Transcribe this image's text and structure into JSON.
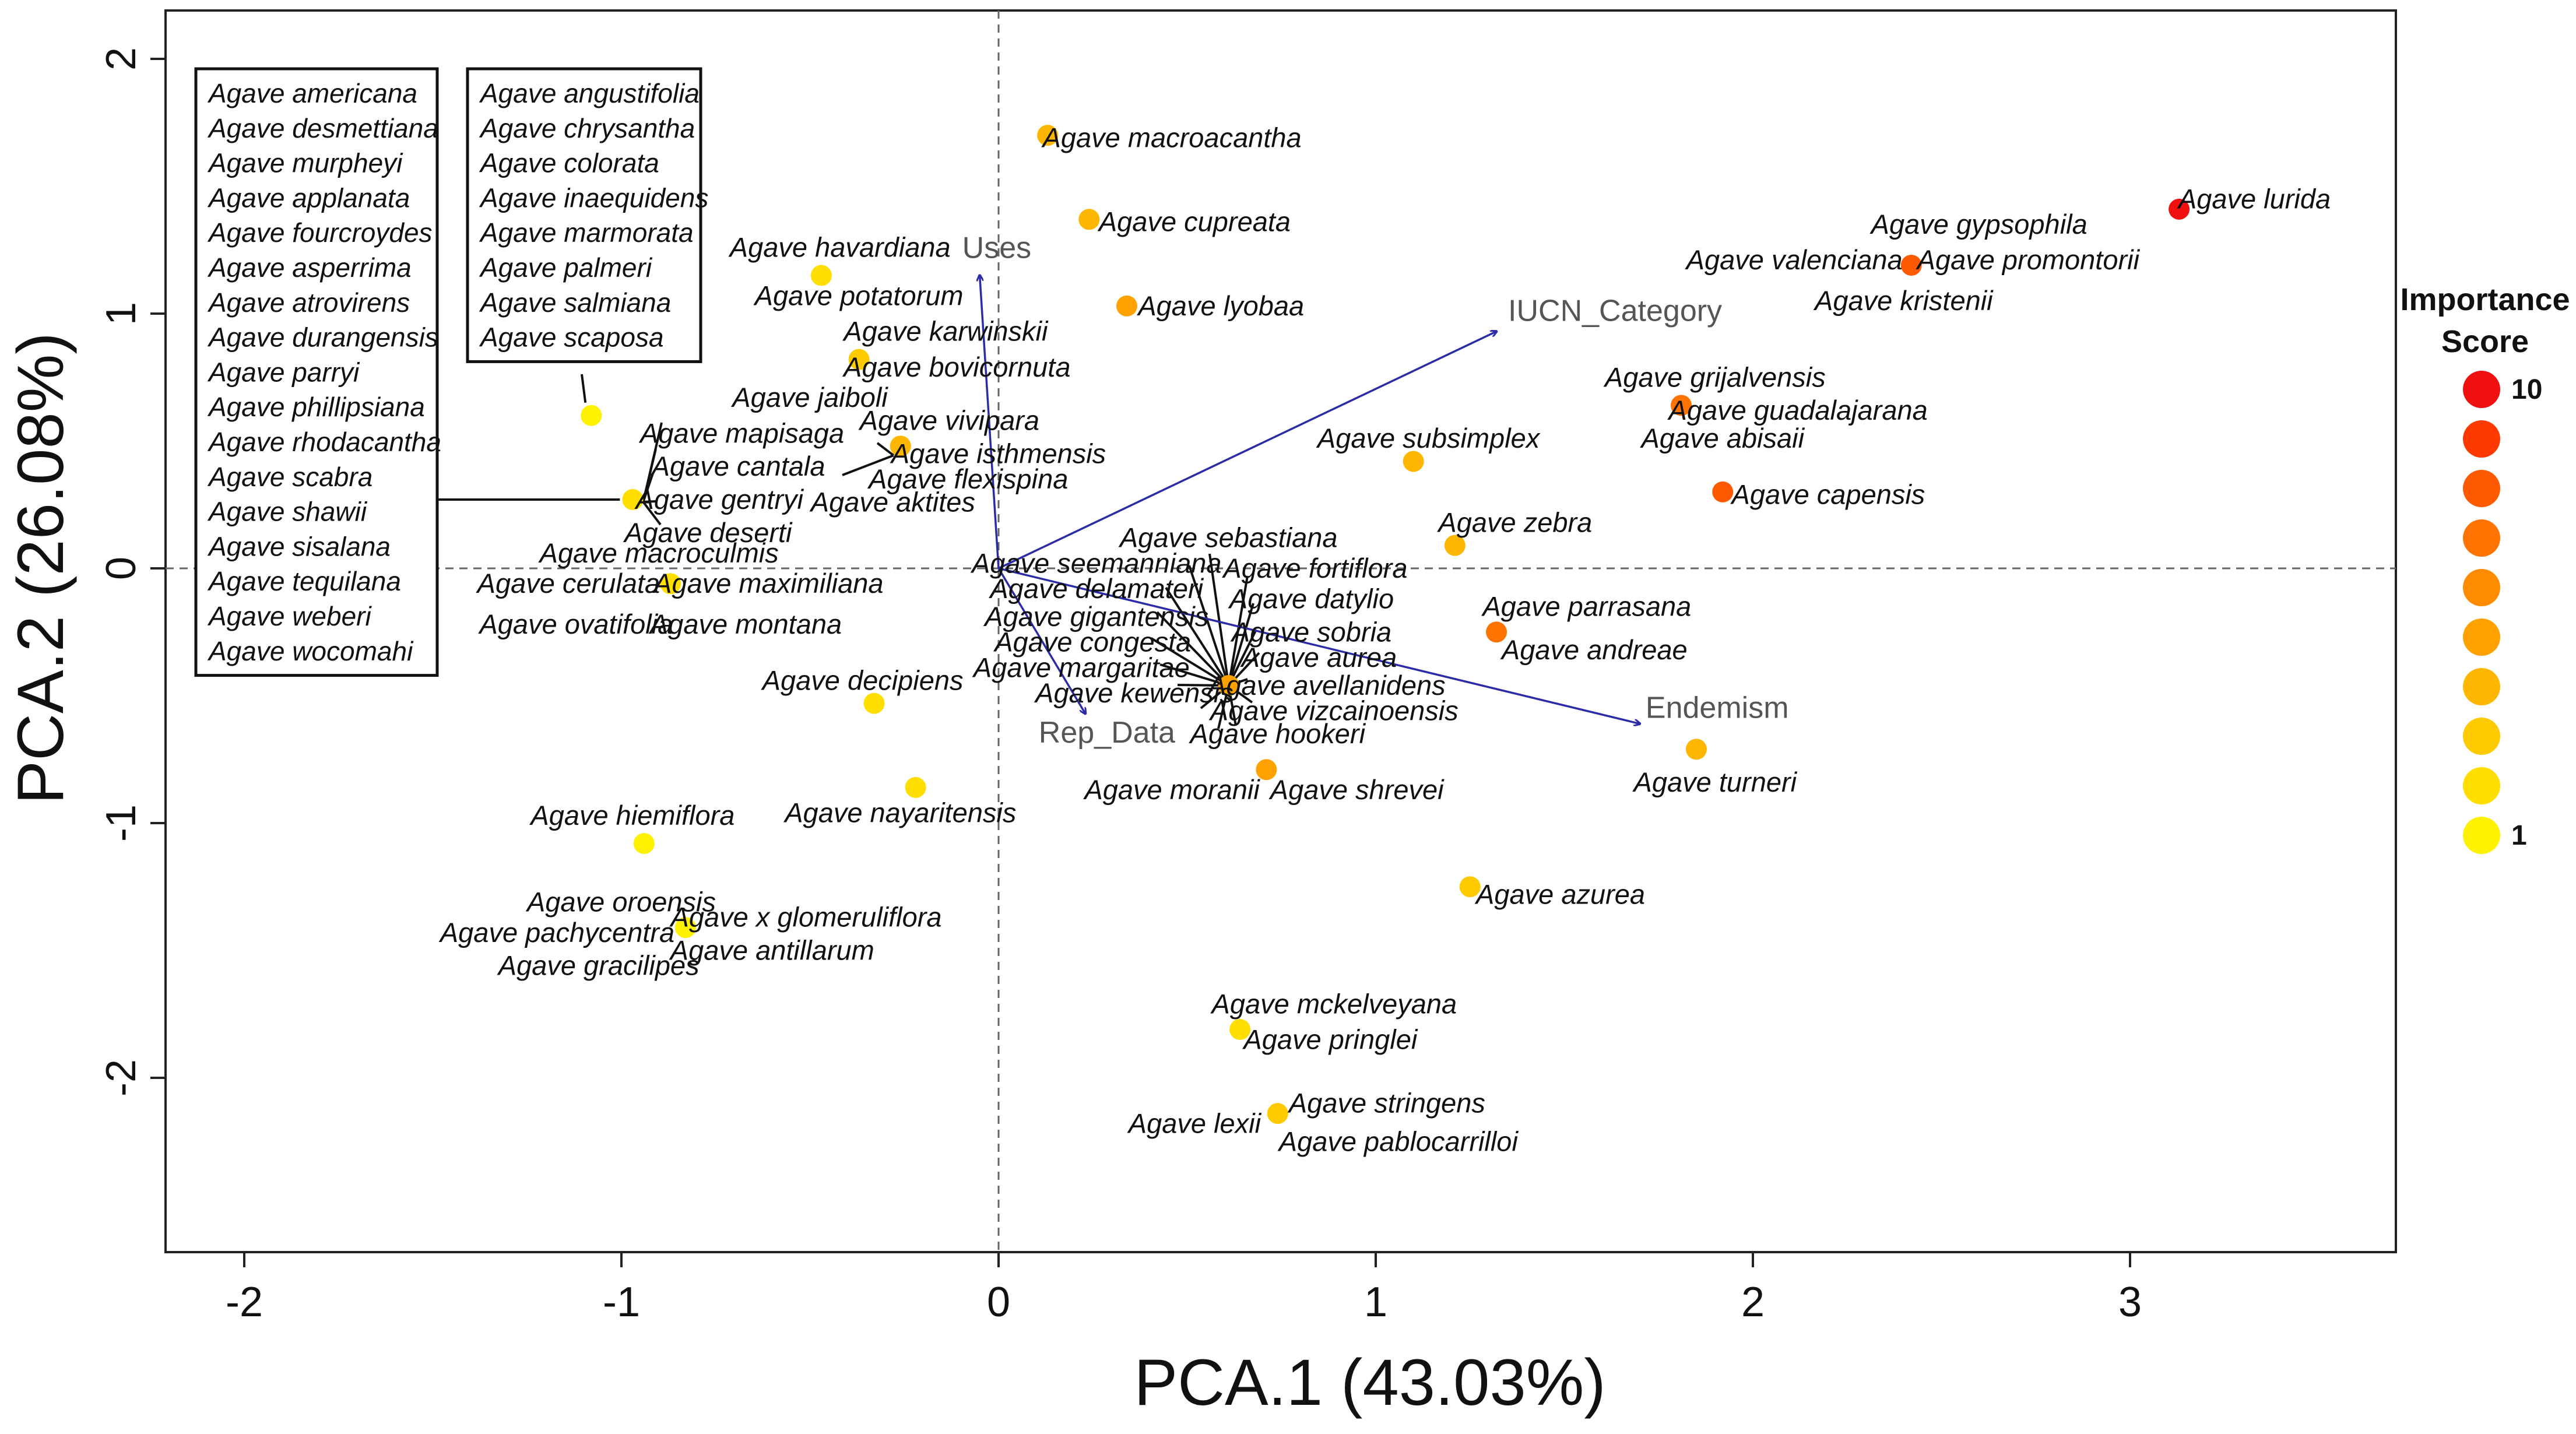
{
  "chart_data": {
    "type": "scatter",
    "title": "",
    "xlabel": "PCA.1 (43.03%)",
    "ylabel": "PCA.2 (26.08%)",
    "xlim": [
      -2.22,
      3.72
    ],
    "ylim": [
      -2.68,
      2.2
    ],
    "xticks": [
      "-2",
      "-1",
      "0",
      "1",
      "2",
      "3"
    ],
    "xtick_values": [
      -2,
      -1,
      0,
      1,
      2,
      3
    ],
    "yticks": [
      "-2",
      "-1",
      "0",
      "1",
      "2"
    ],
    "ytick_values": [
      -2,
      -1,
      0,
      1,
      2
    ],
    "reference_lines": {
      "x": 0,
      "y": 0
    },
    "color_scale": [
      "#fff200",
      "#ffde00",
      "#ffca00",
      "#ffb600",
      "#ffa200",
      "#ff8c00",
      "#ff7300",
      "#ff5a00",
      "#ff3a00",
      "#f01010"
    ],
    "legend": {
      "title_line1": "Importance",
      "title_line2": "Score",
      "max_label": "10",
      "min_label": "1",
      "placement": "right"
    },
    "vectors": [
      {
        "name": "Uses",
        "x": -0.05,
        "y": 1.15
      },
      {
        "name": "IUCN_Category",
        "x": 1.32,
        "y": 0.93
      },
      {
        "name": "Rep_Data",
        "x": 0.23,
        "y": -0.57
      },
      {
        "name": "Endemism",
        "x": 1.7,
        "y": -0.61
      }
    ],
    "points": [
      {
        "x": 3.13,
        "y": 1.41,
        "score": 10
      },
      {
        "x": 2.42,
        "y": 1.19,
        "score": 8
      },
      {
        "x": 1.81,
        "y": 0.64,
        "score": 7
      },
      {
        "x": 1.92,
        "y": 0.3,
        "score": 8
      },
      {
        "x": 1.32,
        "y": -0.25,
        "score": 7
      },
      {
        "x": 0.13,
        "y": 1.7,
        "score": 4
      },
      {
        "x": 0.24,
        "y": 1.37,
        "score": 4
      },
      {
        "x": 0.34,
        "y": 1.03,
        "score": 5
      },
      {
        "x": -0.47,
        "y": 1.15,
        "score": 2
      },
      {
        "x": -0.37,
        "y": 0.82,
        "score": 3
      },
      {
        "x": -0.26,
        "y": 0.48,
        "score": 4
      },
      {
        "x": -1.08,
        "y": 0.6,
        "score": 1
      },
      {
        "x": -0.97,
        "y": 0.27,
        "score": 2
      },
      {
        "x": -0.87,
        "y": -0.06,
        "score": 2
      },
      {
        "x": 1.1,
        "y": 0.42,
        "score": 4
      },
      {
        "x": 1.21,
        "y": 0.09,
        "score": 4
      },
      {
        "x": 0.61,
        "y": -0.46,
        "score": 5
      },
      {
        "x": 0.71,
        "y": -0.79,
        "score": 5
      },
      {
        "x": 1.85,
        "y": -0.71,
        "score": 4
      },
      {
        "x": -0.33,
        "y": -0.53,
        "score": 2
      },
      {
        "x": -0.22,
        "y": -0.86,
        "score": 2
      },
      {
        "x": -0.94,
        "y": -1.08,
        "score": 1
      },
      {
        "x": -0.83,
        "y": -1.41,
        "score": 1
      },
      {
        "x": 1.25,
        "y": -1.25,
        "score": 3
      },
      {
        "x": 0.64,
        "y": -1.81,
        "score": 2
      },
      {
        "x": 0.74,
        "y": -2.14,
        "score": 3
      }
    ],
    "point_labels": [
      {
        "text": "Agave lurida",
        "x": 3.33,
        "y": 1.45
      },
      {
        "text": "Agave gypsophila",
        "x": 2.6,
        "y": 1.35
      },
      {
        "text": "Agave valenciana",
        "x": 2.11,
        "y": 1.21
      },
      {
        "text": "Agave promontorii",
        "x": 2.73,
        "y": 1.21
      },
      {
        "text": "Agave kristenii",
        "x": 2.4,
        "y": 1.05
      },
      {
        "text": "Agave grijalvensis",
        "x": 1.9,
        "y": 0.75
      },
      {
        "text": "Agave guadalajarana",
        "x": 2.12,
        "y": 0.62
      },
      {
        "text": "Agave abisaii",
        "x": 1.92,
        "y": 0.51
      },
      {
        "text": "Agave capensis",
        "x": 2.2,
        "y": 0.29
      },
      {
        "text": "Agave subsimplex",
        "x": 1.14,
        "y": 0.51
      },
      {
        "text": "Agave zebra",
        "x": 1.37,
        "y": 0.18
      },
      {
        "text": "Agave parrasana",
        "x": 1.56,
        "y": -0.15
      },
      {
        "text": "Agave andreae",
        "x": 1.58,
        "y": -0.32
      },
      {
        "text": "Agave turneri",
        "x": 1.9,
        "y": -0.84
      },
      {
        "text": "Agave azurea",
        "x": 1.49,
        "y": -1.28
      },
      {
        "text": "Agave mckelveyana",
        "x": 0.89,
        "y": -1.71
      },
      {
        "text": "Agave pringlei",
        "x": 0.88,
        "y": -1.85
      },
      {
        "text": "Agave stringens",
        "x": 1.03,
        "y": -2.1
      },
      {
        "text": "Agave lexii",
        "x": 0.52,
        "y": -2.18
      },
      {
        "text": "Agave pablocarrilloi",
        "x": 1.06,
        "y": -2.25
      },
      {
        "text": "Agave macroacantha",
        "x": 0.46,
        "y": 1.69
      },
      {
        "text": "Agave cupreata",
        "x": 0.52,
        "y": 1.36
      },
      {
        "text": "Agave lyobaa",
        "x": 0.59,
        "y": 1.03
      },
      {
        "text": "Agave havardiana",
        "x": -0.42,
        "y": 1.26
      },
      {
        "text": "Agave potatorum",
        "x": -0.37,
        "y": 1.07
      },
      {
        "text": "Agave karwinskii",
        "x": -0.14,
        "y": 0.93
      },
      {
        "text": "Agave bovicornuta",
        "x": -0.11,
        "y": 0.79
      },
      {
        "text": "Agave jaiboli",
        "x": -0.5,
        "y": 0.67
      },
      {
        "text": "Agave vivipara",
        "x": -0.13,
        "y": 0.58
      },
      {
        "text": "Agave isthmensis",
        "x": 0.0,
        "y": 0.45
      },
      {
        "text": "Agave flexispina",
        "x": -0.08,
        "y": 0.35
      },
      {
        "text": "Agave aktites",
        "x": -0.28,
        "y": 0.26
      },
      {
        "text": "Agave mapisaga",
        "x": -0.68,
        "y": 0.53
      },
      {
        "text": "Agave cantala",
        "x": -0.69,
        "y": 0.4
      },
      {
        "text": "Agave gentryi",
        "x": -0.74,
        "y": 0.27
      },
      {
        "text": "Agave deserti",
        "x": -0.77,
        "y": 0.14
      },
      {
        "text": "Agave macroculmis",
        "x": -0.9,
        "y": 0.06
      },
      {
        "text": "Agave cerulata",
        "x": -1.14,
        "y": -0.06
      },
      {
        "text": "Agave maximiliana",
        "x": -0.61,
        "y": -0.06
      },
      {
        "text": "Agave ovatifolia",
        "x": -1.12,
        "y": -0.22
      },
      {
        "text": "Agave montana",
        "x": -0.67,
        "y": -0.22
      },
      {
        "text": "Agave decipiens",
        "x": -0.36,
        "y": -0.44
      },
      {
        "text": "Agave nayaritensis",
        "x": -0.26,
        "y": -0.96
      },
      {
        "text": "Agave hiemiflora",
        "x": -0.97,
        "y": -0.97
      },
      {
        "text": "Agave oroensis",
        "x": -1.0,
        "y": -1.31
      },
      {
        "text": "Agave x glomeruliflora",
        "x": -0.51,
        "y": -1.37
      },
      {
        "text": "Agave pachycentra",
        "x": -1.17,
        "y": -1.43
      },
      {
        "text": "Agave antillarum",
        "x": -0.6,
        "y": -1.5
      },
      {
        "text": "Agave gracilipes",
        "x": -1.06,
        "y": -1.56
      },
      {
        "text": "Agave sebastiana",
        "x": 0.61,
        "y": 0.12
      },
      {
        "text": "Agave seemanniana",
        "x": 0.26,
        "y": 0.02
      },
      {
        "text": "Agave fortiflora",
        "x": 0.84,
        "y": 0.0
      },
      {
        "text": "Agave delamateri",
        "x": 0.26,
        "y": -0.08
      },
      {
        "text": "Agave datylio",
        "x": 0.83,
        "y": -0.12
      },
      {
        "text": "Agave gigantensis",
        "x": 0.26,
        "y": -0.19
      },
      {
        "text": "Agave sobria",
        "x": 0.83,
        "y": -0.25
      },
      {
        "text": "Agave congesta",
        "x": 0.25,
        "y": -0.29
      },
      {
        "text": "Agave aurea",
        "x": 0.85,
        "y": -0.35
      },
      {
        "text": "Agave margaritae",
        "x": 0.22,
        "y": -0.39
      },
      {
        "text": "Agave avellanidens",
        "x": 0.87,
        "y": -0.46
      },
      {
        "text": "Agave kewensis",
        "x": 0.36,
        "y": -0.49
      },
      {
        "text": "Agave vizcainoensis",
        "x": 0.89,
        "y": -0.56
      },
      {
        "text": "Agave hookeri",
        "x": 0.74,
        "y": -0.65
      },
      {
        "text": "Agave moranii",
        "x": 0.46,
        "y": -0.87
      },
      {
        "text": "Agave shrevei",
        "x": 0.95,
        "y": -0.87
      }
    ],
    "grouped_labels_left": [
      "Agave americana",
      "Agave desmettiana",
      "Agave murpheyi",
      "Agave applanata",
      "Agave fourcroydes",
      "Agave asperrima",
      "Agave atrovirens",
      "Agave durangensis",
      "Agave parryi",
      "Agave phillipsiana",
      "Agave rhodacantha",
      "Agave scabra",
      "Agave shawii",
      "Agave sisalana",
      "Agave tequilana",
      "Agave weberi",
      "Agave wocomahi"
    ],
    "grouped_labels_right": [
      "Agave angustifolia",
      "Agave chrysantha",
      "Agave colorata",
      "Agave inaequidens",
      "Agave marmorata",
      "Agave palmeri",
      "Agave salmiana",
      "Agave scaposa"
    ]
  }
}
